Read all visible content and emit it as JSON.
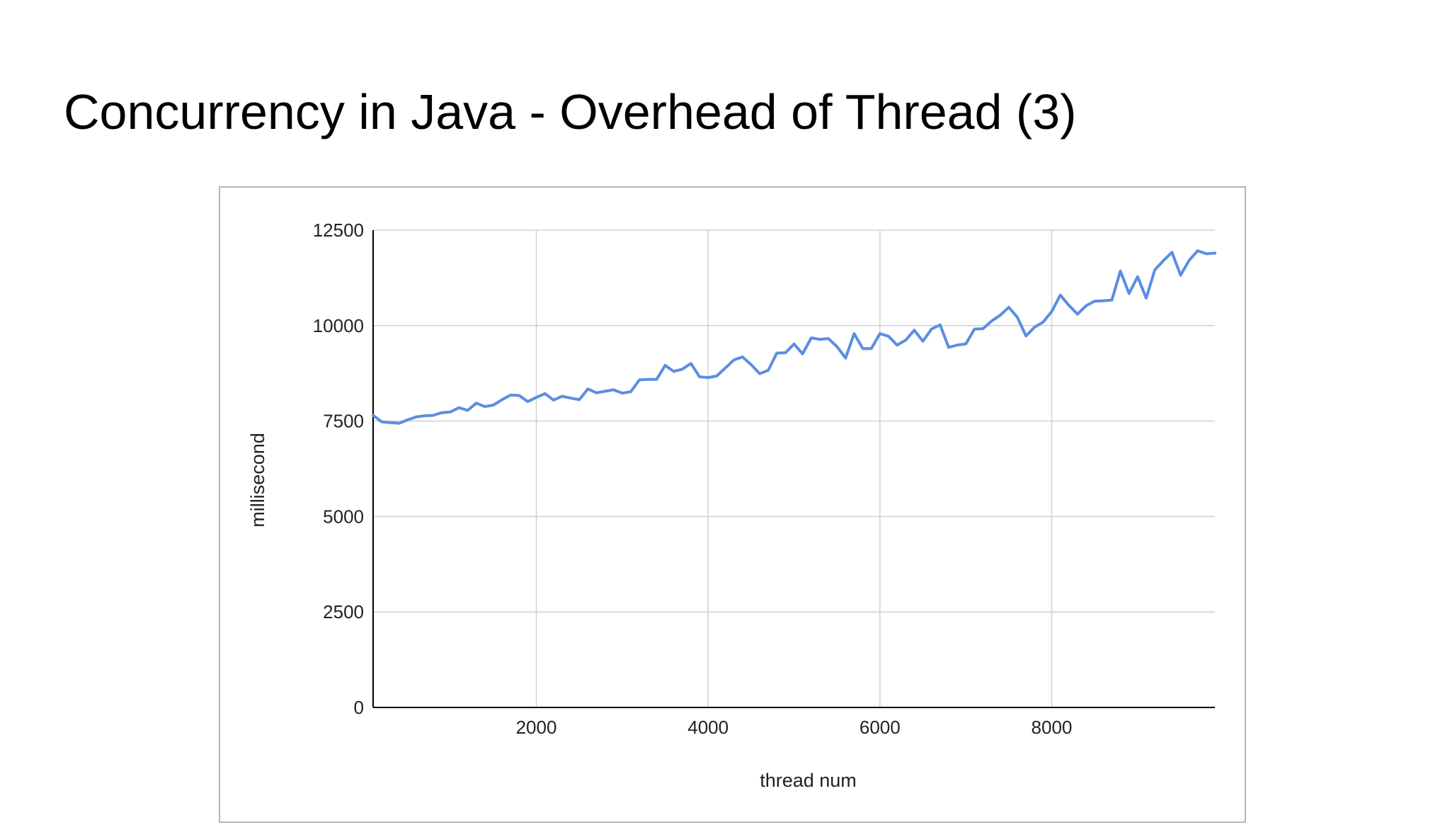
{
  "slide": {
    "title": "Concurrency in Java - Overhead of Thread (3)"
  },
  "colors": {
    "series_line": "#5b8ee0",
    "grid": "#d0d0d0",
    "axis": "#000000",
    "frame": "#b7b7b7"
  },
  "chart_data": {
    "type": "line",
    "title": "",
    "xlabel": "thread num",
    "ylabel": "millisecond",
    "xlim": [
      100,
      9900
    ],
    "ylim": [
      0,
      12500
    ],
    "xticks": [
      2000,
      4000,
      6000,
      8000
    ],
    "yticks": [
      0,
      2500,
      5000,
      7500,
      10000,
      12500
    ],
    "grid": true,
    "legend": "none",
    "series": [
      {
        "x": [
          100,
          200,
          300,
          400,
          500,
          600,
          700,
          800,
          900,
          1000,
          1100,
          1200,
          1300,
          1400,
          1500,
          1600,
          1700,
          1800,
          1900,
          2000,
          2100,
          2200,
          2300,
          2400,
          2500,
          2600,
          2700,
          2800,
          2900,
          3000,
          3100,
          3200,
          3300,
          3400,
          3500,
          3600,
          3700,
          3800,
          3900,
          4000,
          4100,
          4200,
          4300,
          4400,
          4500,
          4600,
          4700,
          4800,
          4900,
          5000,
          5100,
          5200,
          5300,
          5400,
          5500,
          5600,
          5700,
          5800,
          5900,
          6000,
          6100,
          6200,
          6300,
          6400,
          6500,
          6600,
          6700,
          6800,
          6900,
          7000,
          7100,
          7200,
          7300,
          7400,
          7500,
          7600,
          7700,
          7800,
          7900,
          8000,
          8100,
          8200,
          8300,
          8400,
          8500,
          8600,
          8700,
          8800,
          8900,
          9000,
          9100,
          9200,
          9300,
          9400,
          9500,
          9600,
          9700,
          9800,
          9900
        ],
        "values": [
          7650,
          7480,
          7460,
          7440,
          7530,
          7610,
          7640,
          7650,
          7720,
          7740,
          7850,
          7780,
          7970,
          7880,
          7920,
          8060,
          8180,
          8170,
          8010,
          8120,
          8220,
          8050,
          8150,
          8100,
          8060,
          8340,
          8240,
          8280,
          8320,
          8230,
          8270,
          8580,
          8590,
          8590,
          8960,
          8800,
          8860,
          9010,
          8660,
          8640,
          8680,
          8890,
          9100,
          9180,
          8980,
          8740,
          8830,
          9280,
          9290,
          9520,
          9260,
          9680,
          9640,
          9660,
          9450,
          9150,
          9790,
          9400,
          9400,
          9790,
          9720,
          9490,
          9620,
          9880,
          9590,
          9910,
          10020,
          9430,
          9490,
          9520,
          9910,
          9920,
          10120,
          10270,
          10480,
          10220,
          9730,
          9960,
          10090,
          10370,
          10800,
          10530,
          10300,
          10520,
          10640,
          10650,
          10670,
          11430,
          10840,
          11280,
          10720,
          11460,
          11700,
          11920,
          11320,
          11710,
          11960,
          11880,
          11900
        ]
      }
    ]
  }
}
